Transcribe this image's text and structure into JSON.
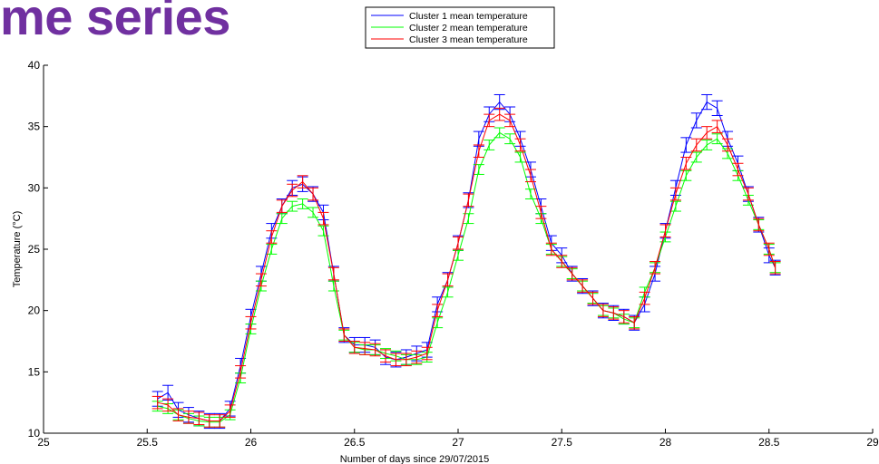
{
  "slide": {
    "title": "me series"
  },
  "chart_data": {
    "type": "line",
    "xlabel": "Number of days since 29/07/2015",
    "ylabel": "Temperature (°C)",
    "xlim": [
      25,
      29
    ],
    "ylim": [
      10,
      40
    ],
    "x_ticks": [
      25,
      25.5,
      26,
      26.5,
      27,
      27.5,
      28,
      28.5,
      29
    ],
    "x_tick_labels": [
      "25",
      "25.5",
      "26",
      "26.5",
      "27",
      "27.5",
      "28",
      "28.5",
      "29"
    ],
    "y_ticks": [
      10,
      15,
      20,
      25,
      30,
      35,
      40
    ],
    "y_tick_labels": [
      "10",
      "15",
      "20",
      "25",
      "30",
      "35",
      "40"
    ],
    "grid": false,
    "legend_position": "top",
    "error_bars": true,
    "series": [
      {
        "name": "Cluster 1 mean temperature",
        "color": "#0000ff",
        "error_half_width": 0.6,
        "points": [
          [
            25.55,
            12.8
          ],
          [
            25.6,
            13.3
          ],
          [
            25.65,
            11.9
          ],
          [
            25.7,
            11.5
          ],
          [
            25.75,
            11.2
          ],
          [
            25.8,
            11.0
          ],
          [
            25.85,
            11.0
          ],
          [
            25.9,
            12.0
          ],
          [
            25.95,
            15.5
          ],
          [
            26.0,
            19.5
          ],
          [
            26.05,
            23.0
          ],
          [
            26.1,
            26.5
          ],
          [
            26.15,
            28.5
          ],
          [
            26.2,
            30.0
          ],
          [
            26.25,
            30.3
          ],
          [
            26.3,
            29.5
          ],
          [
            26.35,
            28.0
          ],
          [
            26.4,
            23.0
          ],
          [
            26.45,
            18.0
          ],
          [
            26.5,
            17.2
          ],
          [
            26.55,
            17.2
          ],
          [
            26.6,
            17.0
          ],
          [
            26.65,
            16.2
          ],
          [
            26.7,
            16.0
          ],
          [
            26.75,
            16.2
          ],
          [
            26.8,
            16.5
          ],
          [
            26.85,
            16.8
          ],
          [
            26.9,
            20.5
          ],
          [
            26.95,
            22.5
          ],
          [
            27.0,
            25.5
          ],
          [
            27.05,
            29.0
          ],
          [
            27.1,
            34.0
          ],
          [
            27.15,
            36.0
          ],
          [
            27.2,
            37.0
          ],
          [
            27.25,
            36.0
          ],
          [
            27.3,
            34.0
          ],
          [
            27.35,
            31.5
          ],
          [
            27.4,
            28.5
          ],
          [
            27.45,
            25.5
          ],
          [
            27.5,
            24.5
          ],
          [
            27.55,
            23.0
          ],
          [
            27.6,
            22.0
          ],
          [
            27.65,
            21.0
          ],
          [
            27.7,
            20.0
          ],
          [
            27.75,
            19.8
          ],
          [
            27.8,
            19.5
          ],
          [
            27.85,
            19.0
          ],
          [
            27.9,
            20.5
          ],
          [
            27.95,
            23.0
          ],
          [
            28.0,
            26.5
          ],
          [
            28.05,
            30.0
          ],
          [
            28.1,
            33.5
          ],
          [
            28.15,
            35.5
          ],
          [
            28.2,
            37.0
          ],
          [
            28.25,
            36.5
          ],
          [
            28.3,
            34.0
          ],
          [
            28.35,
            32.0
          ],
          [
            28.4,
            29.5
          ],
          [
            28.45,
            27.0
          ],
          [
            28.5,
            24.5
          ],
          [
            28.53,
            23.5
          ]
        ]
      },
      {
        "name": "Cluster 2 mean temperature",
        "color": "#00ff00",
        "error_half_width": 0.4,
        "points": [
          [
            25.55,
            12.2
          ],
          [
            25.6,
            12.0
          ],
          [
            25.65,
            11.5
          ],
          [
            25.7,
            11.2
          ],
          [
            25.75,
            11.0
          ],
          [
            25.8,
            10.9
          ],
          [
            25.85,
            10.9
          ],
          [
            25.9,
            11.5
          ],
          [
            25.95,
            14.5
          ],
          [
            26.0,
            18.5
          ],
          [
            26.05,
            22.0
          ],
          [
            26.1,
            25.0
          ],
          [
            26.15,
            27.5
          ],
          [
            26.2,
            28.5
          ],
          [
            26.25,
            28.7
          ],
          [
            26.3,
            28.0
          ],
          [
            26.35,
            26.5
          ],
          [
            26.4,
            22.0
          ],
          [
            26.45,
            18.0
          ],
          [
            26.5,
            17.0
          ],
          [
            26.55,
            16.8
          ],
          [
            26.6,
            16.8
          ],
          [
            26.65,
            16.5
          ],
          [
            26.7,
            16.3
          ],
          [
            26.75,
            16.0
          ],
          [
            26.8,
            16.0
          ],
          [
            26.85,
            16.2
          ],
          [
            26.9,
            19.0
          ],
          [
            26.95,
            21.5
          ],
          [
            27.0,
            24.5
          ],
          [
            27.05,
            27.5
          ],
          [
            27.1,
            31.5
          ],
          [
            27.15,
            33.5
          ],
          [
            27.2,
            34.5
          ],
          [
            27.25,
            34.0
          ],
          [
            27.3,
            32.5
          ],
          [
            27.35,
            29.5
          ],
          [
            27.4,
            27.5
          ],
          [
            27.45,
            25.0
          ],
          [
            27.5,
            24.0
          ],
          [
            27.55,
            23.0
          ],
          [
            27.6,
            22.0
          ],
          [
            27.65,
            21.0
          ],
          [
            27.7,
            20.0
          ],
          [
            27.75,
            19.8
          ],
          [
            27.8,
            19.3
          ],
          [
            27.85,
            19.0
          ],
          [
            27.9,
            21.5
          ],
          [
            27.95,
            23.5
          ],
          [
            28.0,
            26.0
          ],
          [
            28.05,
            28.5
          ],
          [
            28.1,
            31.0
          ],
          [
            28.15,
            32.5
          ],
          [
            28.2,
            33.5
          ],
          [
            28.25,
            34.0
          ],
          [
            28.3,
            32.8
          ],
          [
            28.35,
            31.0
          ],
          [
            28.4,
            29.0
          ],
          [
            28.45,
            27.0
          ],
          [
            28.5,
            25.0
          ],
          [
            28.53,
            23.5
          ]
        ]
      },
      {
        "name": "Cluster 3 mean temperature",
        "color": "#ff0000",
        "error_half_width": 0.5,
        "points": [
          [
            25.55,
            12.5
          ],
          [
            25.6,
            12.3
          ],
          [
            25.65,
            11.5
          ],
          [
            25.7,
            11.3
          ],
          [
            25.75,
            11.2
          ],
          [
            25.8,
            11.0
          ],
          [
            25.85,
            11.0
          ],
          [
            25.9,
            11.8
          ],
          [
            25.95,
            15.0
          ],
          [
            26.0,
            19.0
          ],
          [
            26.05,
            22.5
          ],
          [
            26.1,
            26.0
          ],
          [
            26.15,
            28.5
          ],
          [
            26.2,
            29.8
          ],
          [
            26.25,
            30.5
          ],
          [
            26.3,
            29.5
          ],
          [
            26.35,
            27.5
          ],
          [
            26.4,
            23.0
          ],
          [
            26.45,
            18.0
          ],
          [
            26.5,
            17.0
          ],
          [
            26.55,
            16.9
          ],
          [
            26.6,
            16.8
          ],
          [
            26.65,
            16.3
          ],
          [
            26.7,
            16.0
          ],
          [
            26.75,
            16.0
          ],
          [
            26.8,
            16.2
          ],
          [
            26.85,
            16.5
          ],
          [
            26.9,
            20.0
          ],
          [
            26.95,
            22.5
          ],
          [
            27.0,
            25.5
          ],
          [
            27.05,
            29.0
          ],
          [
            27.1,
            33.0
          ],
          [
            27.15,
            35.5
          ],
          [
            27.2,
            36.0
          ],
          [
            27.25,
            35.5
          ],
          [
            27.3,
            33.5
          ],
          [
            27.35,
            31.0
          ],
          [
            27.4,
            28.0
          ],
          [
            27.45,
            25.0
          ],
          [
            27.5,
            24.0
          ],
          [
            27.55,
            23.0
          ],
          [
            27.6,
            22.0
          ],
          [
            27.65,
            21.0
          ],
          [
            27.7,
            20.0
          ],
          [
            27.75,
            19.8
          ],
          [
            27.8,
            19.5
          ],
          [
            27.85,
            19.0
          ],
          [
            27.9,
            21.0
          ],
          [
            27.95,
            23.5
          ],
          [
            28.0,
            26.5
          ],
          [
            28.05,
            29.5
          ],
          [
            28.1,
            32.0
          ],
          [
            28.15,
            33.5
          ],
          [
            28.2,
            34.5
          ],
          [
            28.25,
            35.0
          ],
          [
            28.3,
            33.5
          ],
          [
            28.35,
            31.5
          ],
          [
            28.4,
            29.5
          ],
          [
            28.45,
            27.0
          ],
          [
            28.5,
            25.0
          ],
          [
            28.53,
            23.5
          ]
        ]
      }
    ]
  }
}
